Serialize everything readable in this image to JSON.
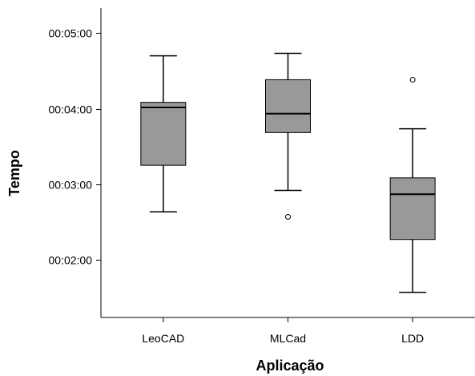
{
  "chart_data": {
    "type": "boxplot",
    "title": "",
    "xlabel": "Aplicação",
    "ylabel": "Tempo",
    "y_unit": "time (hh:mm:ss)",
    "ylim": [
      "00:01:14",
      "00:05:20"
    ],
    "yticks": [
      "00:02:00",
      "00:03:00",
      "00:04:00",
      "00:05:00"
    ],
    "grid": false,
    "box_color": "#999999",
    "categories": [
      "LeoCAD",
      "MLCad",
      "LDD"
    ],
    "boxes": [
      {
        "name": "LeoCAD",
        "whisker_low": "00:02:38",
        "q1": "00:03:15",
        "median": "00:04:01",
        "q3": "00:04:05",
        "whisker_high": "00:04:42",
        "outliers": []
      },
      {
        "name": "MLCad",
        "whisker_low": "00:02:55",
        "q1": "00:03:41",
        "median": "00:03:56",
        "q3": "00:04:23",
        "whisker_high": "00:04:44",
        "outliers": [
          "00:02:34"
        ]
      },
      {
        "name": "LDD",
        "whisker_low": "00:01:34",
        "q1": "00:02:16",
        "median": "00:02:52",
        "q3": "00:03:05",
        "whisker_high": "00:03:44",
        "outliers": [
          "00:04:23"
        ]
      }
    ]
  }
}
